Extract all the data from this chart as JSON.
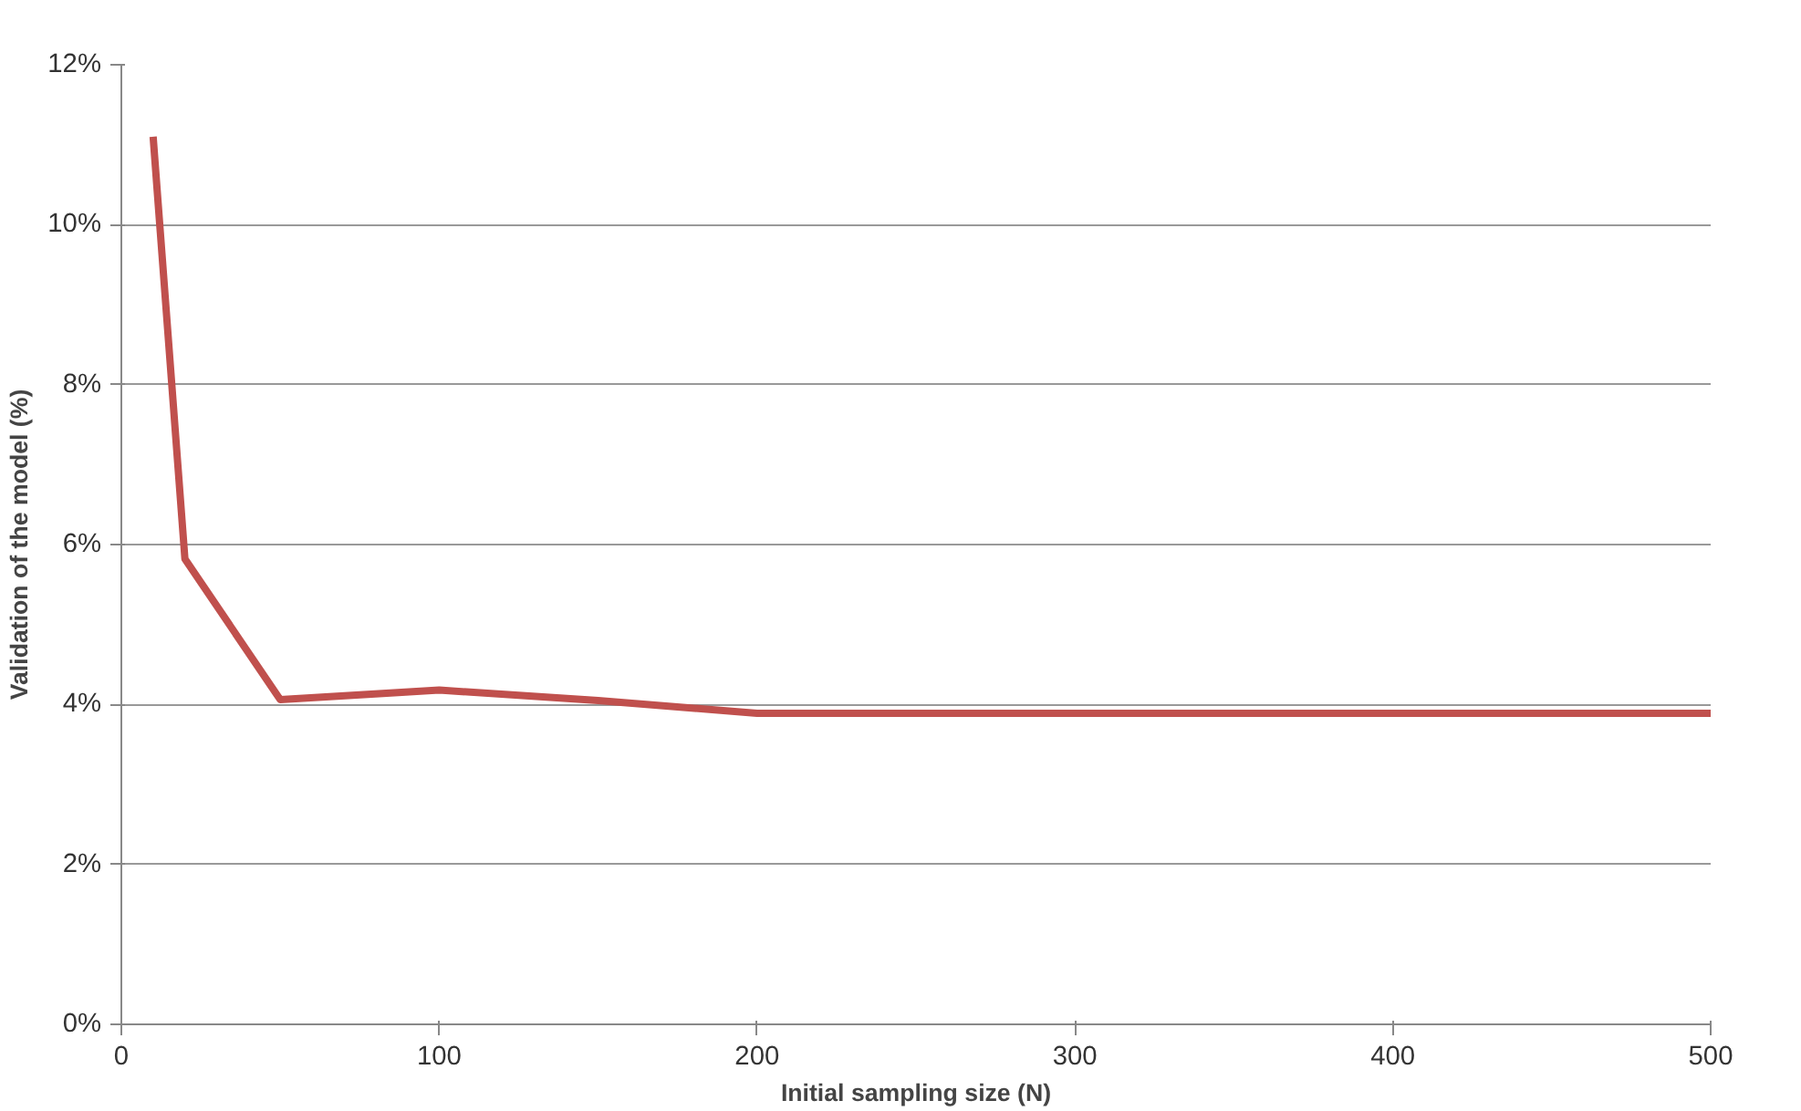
{
  "chart_data": {
    "type": "line",
    "xlabel": "Initial sampling size (N)",
    "ylabel": "Validation of the model (%)",
    "x": [
      10,
      20,
      50,
      100,
      150,
      200,
      300,
      400,
      500
    ],
    "series": [
      {
        "color": "#c0504d",
        "values": [
          11.1,
          5.82,
          4.06,
          4.18,
          4.05,
          3.89,
          3.89,
          3.89,
          3.89
        ]
      }
    ],
    "xlim": [
      0,
      500
    ],
    "xticks": [
      0,
      100,
      200,
      300,
      400,
      500
    ],
    "ylim": [
      0,
      12
    ],
    "yticks": [
      {
        "value": 0,
        "label": "0%"
      },
      {
        "value": 2,
        "label": "2%"
      },
      {
        "value": 4,
        "label": "4%"
      },
      {
        "value": 6,
        "label": "6%"
      },
      {
        "value": 8,
        "label": "8%"
      },
      {
        "value": 10,
        "label": "10%"
      },
      {
        "value": 12,
        "label": "12%"
      }
    ],
    "grid": "y",
    "marker": "none",
    "line_style": "solid"
  }
}
